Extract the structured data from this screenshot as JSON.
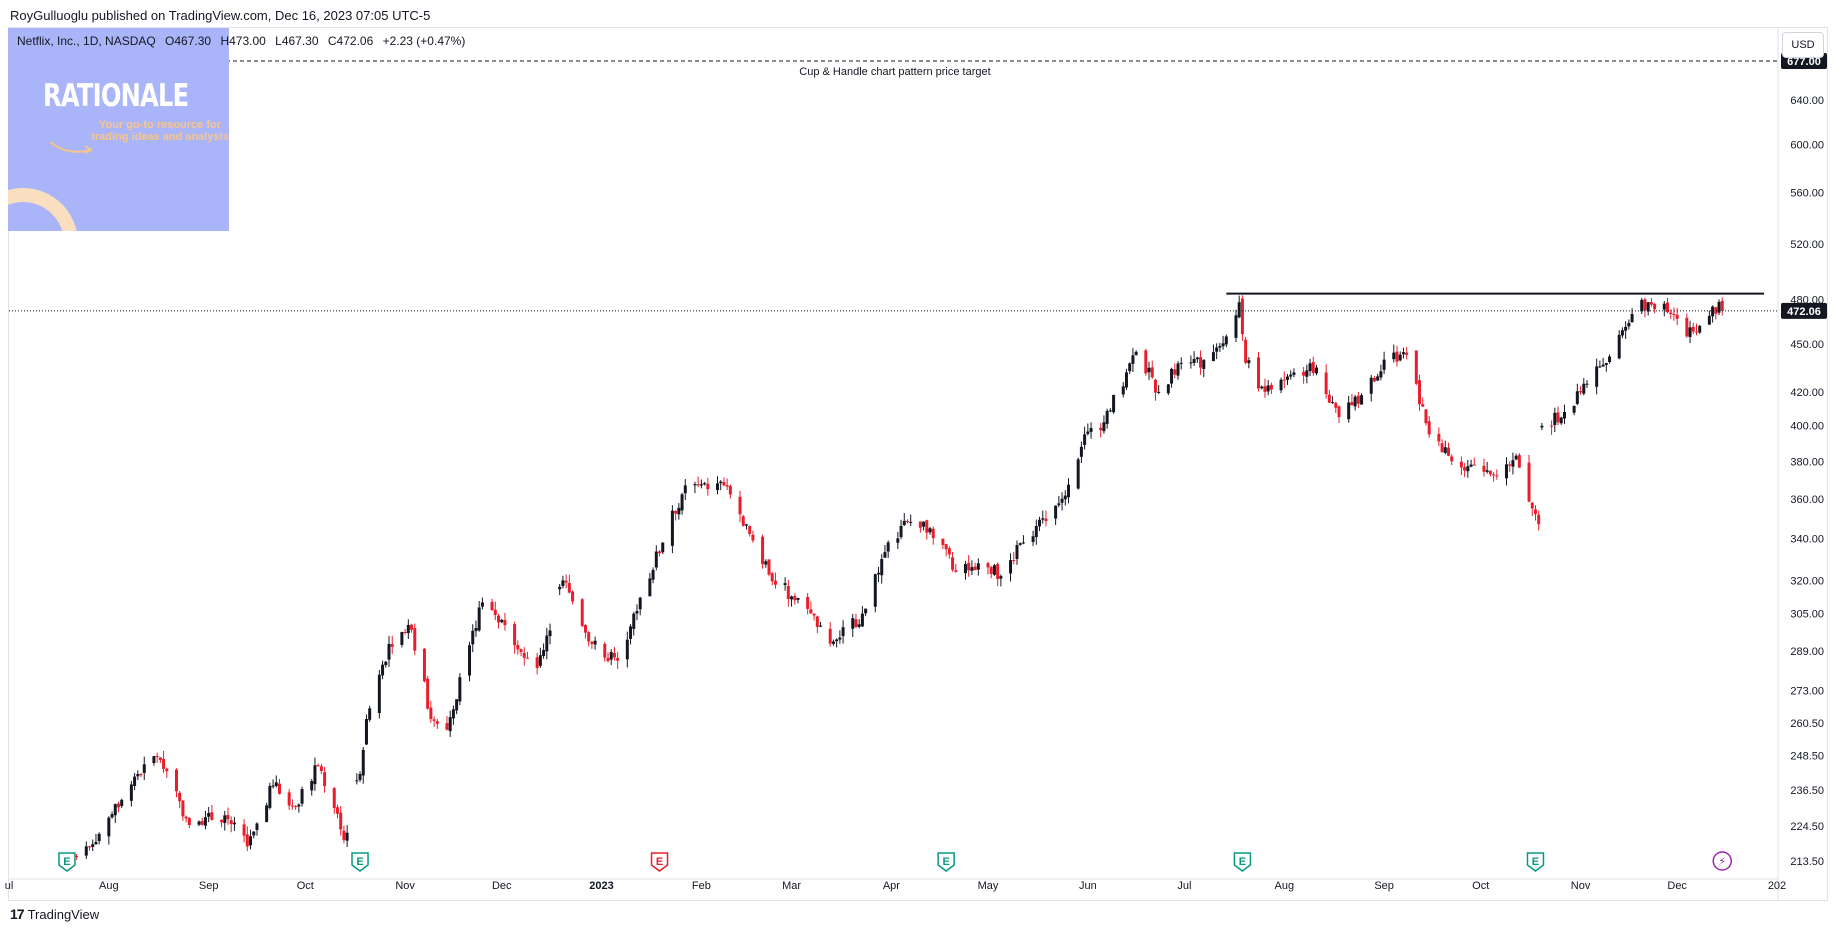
{
  "header": {
    "published": "RoyGulluoglu published on TradingView.com, Dec 16, 2023 07:05 UTC-5"
  },
  "symbol_info": {
    "name": "Netflix, Inc., 1D, NASDAQ",
    "open": "O467.30",
    "high": "H473.00",
    "low": "L467.30",
    "close": "C472.06",
    "change": "+2.23 (+0.47%)"
  },
  "currency_button": "USD",
  "logo": {
    "title": "RATIONALE",
    "tagline": "Your go-to resource for trading ideas and analysis"
  },
  "footer": {
    "brand": "TradingView"
  },
  "colors": {
    "up": "#131722",
    "down": "#e91e2c",
    "earnings": "#089981",
    "earnings_miss": "#e91e2c",
    "dividend": "#9c27b0",
    "logo_bg": "#a9b5f8"
  },
  "chart_data": {
    "type": "candlestick",
    "ticker": "NFLX",
    "interval": "1D",
    "y_axis": {
      "scale": "log",
      "range": [
        208,
        710
      ],
      "ticks": [
        677.0,
        640.0,
        600.0,
        560.0,
        520.0,
        480.0,
        450.0,
        420.0,
        400.0,
        380.0,
        360.0,
        340.0,
        320.0,
        305.0,
        289.0,
        273.0,
        260.5,
        248.5,
        236.5,
        224.5,
        213.5
      ],
      "tick_labels": [
        "677.00",
        "640.00",
        "600.00",
        "560.00",
        "520.00",
        "480.00",
        "450.00",
        "420.00",
        "400.00",
        "380.00",
        "360.00",
        "340.00",
        "320.00",
        "305.00",
        "289.00",
        "273.00",
        "260.50",
        "248.50",
        "236.50",
        "224.50",
        "213.50"
      ],
      "last_price": 472.06,
      "last_price_label": "472.06",
      "target_price": 677.0,
      "target_price_label": "677.00"
    },
    "x_axis": {
      "labels": [
        {
          "label": "ul",
          "date": "2022-07-01"
        },
        {
          "label": "Aug",
          "date": "2022-08-01"
        },
        {
          "label": "Sep",
          "date": "2022-09-01"
        },
        {
          "label": "Oct",
          "date": "2022-10-01"
        },
        {
          "label": "Nov",
          "date": "2022-11-01"
        },
        {
          "label": "Dec",
          "date": "2022-12-01"
        },
        {
          "label": "2023",
          "date": "2023-01-01"
        },
        {
          "label": "Feb",
          "date": "2023-02-01"
        },
        {
          "label": "Mar",
          "date": "2023-03-01"
        },
        {
          "label": "Apr",
          "date": "2023-04-01"
        },
        {
          "label": "May",
          "date": "2023-05-01"
        },
        {
          "label": "Jun",
          "date": "2023-06-01"
        },
        {
          "label": "Jul",
          "date": "2023-07-01"
        },
        {
          "label": "Aug",
          "date": "2023-08-01"
        },
        {
          "label": "Sep",
          "date": "2023-09-01"
        },
        {
          "label": "Oct",
          "date": "2023-10-01"
        },
        {
          "label": "Nov",
          "date": "2023-11-01"
        },
        {
          "label": "Dec",
          "date": "2023-12-01"
        },
        {
          "label": "202",
          "date": "2024-01-01"
        }
      ],
      "range": [
        "2022-07-01",
        "2024-01-01"
      ]
    },
    "anchors": [
      {
        "date": "2022-07-22",
        "close": 215
      },
      {
        "date": "2022-07-29",
        "close": 222
      },
      {
        "date": "2022-08-10",
        "close": 242
      },
      {
        "date": "2022-08-16",
        "close": 248
      },
      {
        "date": "2022-08-25",
        "close": 227
      },
      {
        "date": "2022-09-06",
        "close": 228
      },
      {
        "date": "2022-09-13",
        "close": 218
      },
      {
        "date": "2022-09-21",
        "close": 238
      },
      {
        "date": "2022-09-28",
        "close": 231
      },
      {
        "date": "2022-10-05",
        "close": 245
      },
      {
        "date": "2022-10-13",
        "close": 220
      },
      {
        "date": "2022-10-18",
        "close": 242
      },
      {
        "date": "2022-10-20",
        "close": 262
      },
      {
        "date": "2022-10-27",
        "close": 292
      },
      {
        "date": "2022-11-03",
        "close": 298
      },
      {
        "date": "2022-11-09",
        "close": 262
      },
      {
        "date": "2022-11-14",
        "close": 258
      },
      {
        "date": "2022-11-25",
        "close": 310
      },
      {
        "date": "2022-12-02",
        "close": 300
      },
      {
        "date": "2022-12-12",
        "close": 282
      },
      {
        "date": "2022-12-20",
        "close": 320
      },
      {
        "date": "2022-12-29",
        "close": 292
      },
      {
        "date": "2023-01-06",
        "close": 285
      },
      {
        "date": "2023-01-11",
        "close": 305
      },
      {
        "date": "2023-01-20",
        "close": 338
      },
      {
        "date": "2023-01-27",
        "close": 367
      },
      {
        "date": "2023-02-03",
        "close": 365
      },
      {
        "date": "2023-02-08",
        "close": 367
      },
      {
        "date": "2023-02-15",
        "close": 347
      },
      {
        "date": "2023-02-24",
        "close": 318
      },
      {
        "date": "2023-03-03",
        "close": 312
      },
      {
        "date": "2023-03-14",
        "close": 293
      },
      {
        "date": "2023-03-23",
        "close": 305
      },
      {
        "date": "2023-03-31",
        "close": 338
      },
      {
        "date": "2023-04-06",
        "close": 348
      },
      {
        "date": "2023-04-13",
        "close": 345
      },
      {
        "date": "2023-04-21",
        "close": 324
      },
      {
        "date": "2023-04-28",
        "close": 328
      },
      {
        "date": "2023-05-05",
        "close": 322
      },
      {
        "date": "2023-05-12",
        "close": 338
      },
      {
        "date": "2023-05-18",
        "close": 350
      },
      {
        "date": "2023-05-24",
        "close": 360
      },
      {
        "date": "2023-05-31",
        "close": 395
      },
      {
        "date": "2023-06-06",
        "close": 402
      },
      {
        "date": "2023-06-13",
        "close": 432
      },
      {
        "date": "2023-06-16",
        "close": 445
      },
      {
        "date": "2023-06-23",
        "close": 420
      },
      {
        "date": "2023-06-30",
        "close": 438
      },
      {
        "date": "2023-07-07",
        "close": 440
      },
      {
        "date": "2023-07-14",
        "close": 455
      },
      {
        "date": "2023-07-18",
        "close": 478
      },
      {
        "date": "2023-07-20",
        "close": 438
      },
      {
        "date": "2023-07-26",
        "close": 420
      },
      {
        "date": "2023-08-04",
        "close": 432
      },
      {
        "date": "2023-08-11",
        "close": 435
      },
      {
        "date": "2023-08-18",
        "close": 405
      },
      {
        "date": "2023-08-25",
        "close": 418
      },
      {
        "date": "2023-09-01",
        "close": 440
      },
      {
        "date": "2023-09-08",
        "close": 443
      },
      {
        "date": "2023-09-15",
        "close": 395
      },
      {
        "date": "2023-09-22",
        "close": 380
      },
      {
        "date": "2023-09-29",
        "close": 378
      },
      {
        "date": "2023-10-06",
        "close": 372
      },
      {
        "date": "2023-10-12",
        "close": 383
      },
      {
        "date": "2023-10-17",
        "close": 355
      },
      {
        "date": "2023-10-19",
        "close": 347
      },
      {
        "date": "2023-10-20",
        "close": 400
      },
      {
        "date": "2023-10-27",
        "close": 408
      },
      {
        "date": "2023-11-03",
        "close": 425
      },
      {
        "date": "2023-11-10",
        "close": 442
      },
      {
        "date": "2023-11-17",
        "close": 470
      },
      {
        "date": "2023-11-22",
        "close": 478
      },
      {
        "date": "2023-11-29",
        "close": 470
      },
      {
        "date": "2023-12-04",
        "close": 455
      },
      {
        "date": "2023-12-08",
        "close": 462
      },
      {
        "date": "2023-12-12",
        "close": 475
      },
      {
        "date": "2023-12-15",
        "close": 472.06
      }
    ],
    "resistance_line": {
      "price": 484,
      "from": "2023-07-14",
      "to": "2023-12-28"
    },
    "target_line": {
      "price": 677.0,
      "label": "Cup & Handle chart pattern price target"
    },
    "events": [
      {
        "date": "2022-07-19",
        "type": "earnings",
        "glyph": "E"
      },
      {
        "date": "2022-10-18",
        "type": "earnings",
        "glyph": "E"
      },
      {
        "date": "2023-01-19",
        "type": "earnings_miss",
        "glyph": "E"
      },
      {
        "date": "2023-04-18",
        "type": "earnings",
        "glyph": "E"
      },
      {
        "date": "2023-07-19",
        "type": "earnings",
        "glyph": "E"
      },
      {
        "date": "2023-10-18",
        "type": "earnings",
        "glyph": "E"
      },
      {
        "date": "2023-12-15",
        "type": "dividend",
        "glyph": "⚡"
      }
    ]
  }
}
